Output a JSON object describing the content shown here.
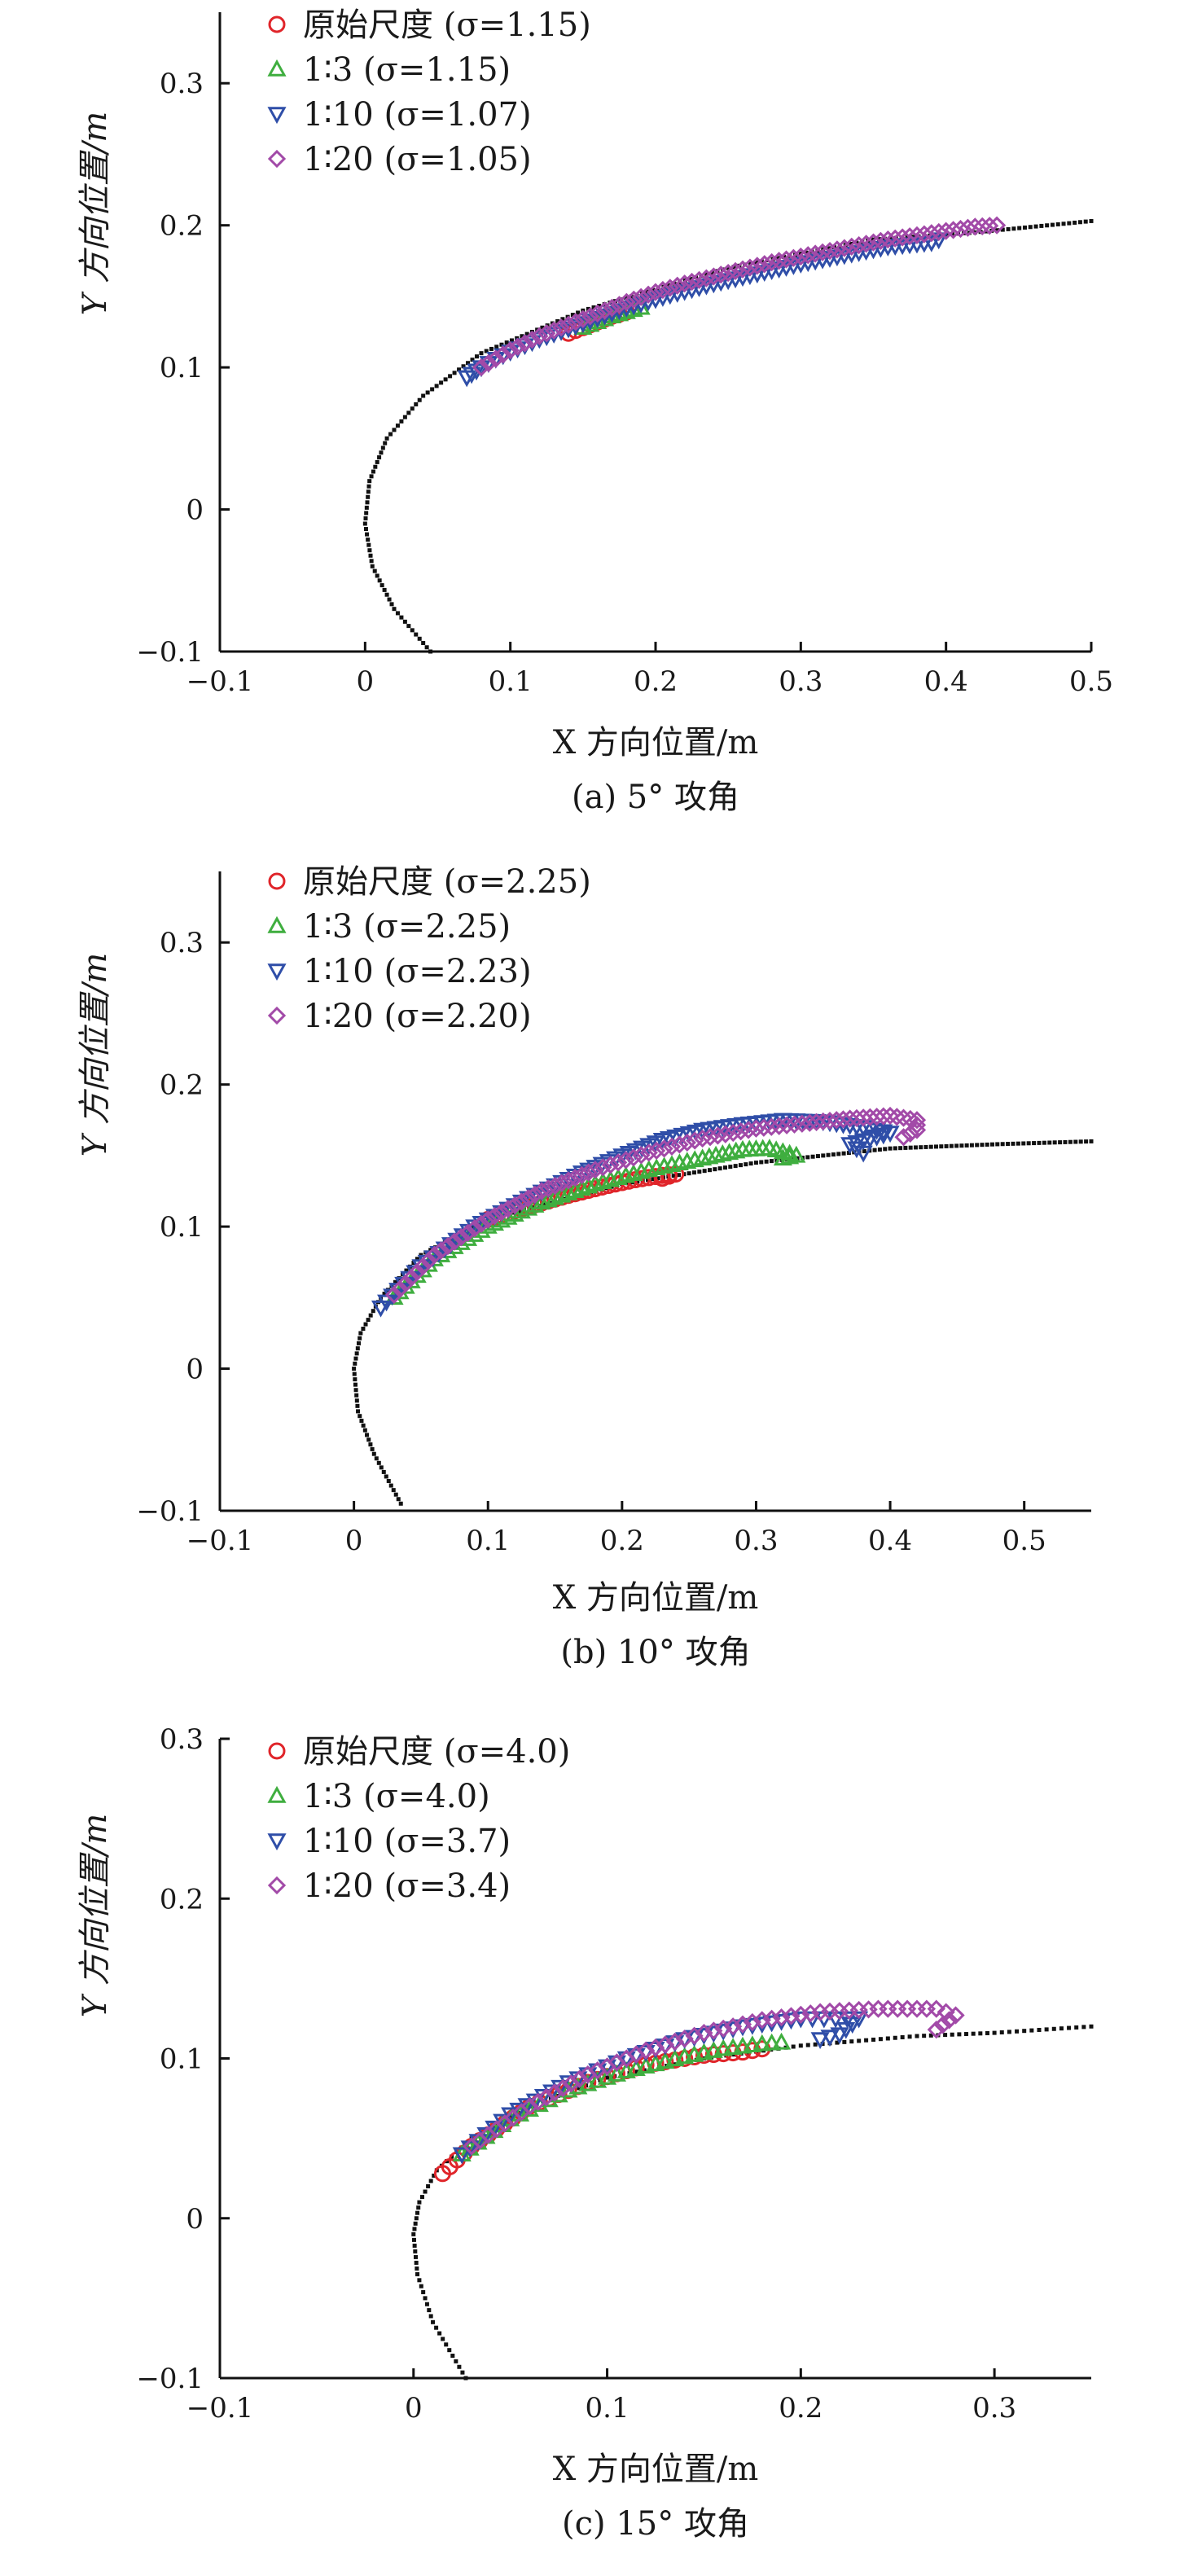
{
  "chart_data": [
    {
      "type": "scatter",
      "caption": "(a) 5° 攻角",
      "xlabel": "X 方向位置/m",
      "ylabel": "Y 方向位置/m",
      "xlim": [
        -0.1,
        0.5
      ],
      "ylim": [
        -0.1,
        0.35
      ],
      "xticks": [
        "−0.1",
        "0",
        "0.1",
        "0.2",
        "0.3",
        "0.4",
        "0.5"
      ],
      "yticks": [
        "−0.1",
        "0",
        "0.1",
        "0.2",
        "0.3"
      ],
      "xtick_values": [
        -0.1,
        0,
        0.1,
        0.2,
        0.3,
        0.4,
        0.5
      ],
      "ytick_values": [
        -0.1,
        0,
        0.1,
        0.2,
        0.3
      ],
      "legend_position": "top-left",
      "reference_curve": {
        "style": "dotted",
        "color": "#111111",
        "points": [
          [
            0.045,
            -0.1
          ],
          [
            0.02,
            -0.07
          ],
          [
            0.005,
            -0.04
          ],
          [
            0.0,
            -0.01
          ],
          [
            0.003,
            0.02
          ],
          [
            0.015,
            0.05
          ],
          [
            0.04,
            0.08
          ],
          [
            0.08,
            0.11
          ],
          [
            0.15,
            0.14
          ],
          [
            0.25,
            0.17
          ],
          [
            0.35,
            0.19
          ],
          [
            0.42,
            0.195
          ],
          [
            0.5,
            0.203
          ]
        ]
      },
      "series": [
        {
          "name": "原始尺度 (σ=1.15)",
          "marker": "circle",
          "color": "#e0252a",
          "points": [
            [
              0.14,
              0.124
            ],
            [
              0.15,
              0.128
            ],
            [
              0.16,
              0.132
            ],
            [
              0.17,
              0.136
            ],
            [
              0.18,
              0.139
            ]
          ]
        },
        {
          "name": "1∶3 (σ=1.15)",
          "marker": "triangle-up",
          "color": "#3fae3f",
          "points": [
            [
              0.15,
              0.128
            ],
            [
              0.16,
              0.132
            ],
            [
              0.17,
              0.136
            ],
            [
              0.18,
              0.139
            ],
            [
              0.19,
              0.142
            ]
          ]
        },
        {
          "name": "1∶10 (σ=1.07)",
          "marker": "triangle-down",
          "color": "#2f4ea8",
          "points": [
            [
              0.07,
              0.093
            ],
            [
              0.08,
              0.1
            ],
            [
              0.09,
              0.106
            ],
            [
              0.1,
              0.111
            ],
            [
              0.12,
              0.12
            ],
            [
              0.15,
              0.131
            ],
            [
              0.18,
              0.142
            ],
            [
              0.21,
              0.151
            ],
            [
              0.24,
              0.159
            ],
            [
              0.27,
              0.166
            ],
            [
              0.3,
              0.173
            ],
            [
              0.33,
              0.179
            ],
            [
              0.36,
              0.185
            ],
            [
              0.39,
              0.188
            ],
            [
              0.395,
              0.19
            ]
          ]
        },
        {
          "name": "1∶20 (σ=1.05)",
          "marker": "diamond",
          "color": "#a24aa8",
          "points": [
            [
              0.08,
              0.1
            ],
            [
              0.1,
              0.112
            ],
            [
              0.12,
              0.122
            ],
            [
              0.14,
              0.13
            ],
            [
              0.16,
              0.138
            ],
            [
              0.18,
              0.146
            ],
            [
              0.2,
              0.153
            ],
            [
              0.22,
              0.159
            ],
            [
              0.24,
              0.164
            ],
            [
              0.26,
              0.169
            ],
            [
              0.28,
              0.174
            ],
            [
              0.3,
              0.178
            ],
            [
              0.32,
              0.182
            ],
            [
              0.34,
              0.186
            ],
            [
              0.36,
              0.19
            ],
            [
              0.38,
              0.193
            ],
            [
              0.4,
              0.196
            ],
            [
              0.42,
              0.199
            ],
            [
              0.435,
              0.2
            ]
          ]
        }
      ]
    },
    {
      "type": "scatter",
      "caption": "(b) 10° 攻角",
      "xlabel": "X 方向位置/m",
      "ylabel": "Y 方向位置/m",
      "xlim": [
        -0.1,
        0.55
      ],
      "ylim": [
        -0.1,
        0.35
      ],
      "xticks": [
        "−0.1",
        "0",
        "0.1",
        "0.2",
        "0.3",
        "0.4",
        "0.5"
      ],
      "yticks": [
        "−0.1",
        "0",
        "0.1",
        "0.2",
        "0.3"
      ],
      "xtick_values": [
        -0.1,
        0,
        0.1,
        0.2,
        0.3,
        0.4,
        0.5
      ],
      "ytick_values": [
        -0.1,
        0,
        0.1,
        0.2,
        0.3
      ],
      "legend_position": "top-left",
      "reference_curve": {
        "style": "dotted",
        "color": "#111111",
        "points": [
          [
            0.035,
            -0.095
          ],
          [
            0.015,
            -0.06
          ],
          [
            0.003,
            -0.03
          ],
          [
            0.0,
            0.0
          ],
          [
            0.005,
            0.025
          ],
          [
            0.02,
            0.05
          ],
          [
            0.05,
            0.08
          ],
          [
            0.1,
            0.105
          ],
          [
            0.2,
            0.13
          ],
          [
            0.3,
            0.145
          ],
          [
            0.4,
            0.155
          ],
          [
            0.48,
            0.158
          ],
          [
            0.55,
            0.16
          ]
        ]
      },
      "series": [
        {
          "name": "原始尺度 (σ=2.25)",
          "marker": "circle",
          "color": "#e0252a",
          "points": [
            [
              0.1,
              0.105
            ],
            [
              0.13,
              0.114
            ],
            [
              0.16,
              0.122
            ],
            [
              0.19,
              0.129
            ],
            [
              0.21,
              0.133
            ],
            [
              0.23,
              0.136
            ],
            [
              0.24,
              0.137
            ],
            [
              0.23,
              0.134
            ]
          ]
        },
        {
          "name": "1∶3 (σ=2.25)",
          "marker": "triangle-up",
          "color": "#3fae3f",
          "points": [
            [
              0.03,
              0.05
            ],
            [
              0.06,
              0.077
            ],
            [
              0.1,
              0.1
            ],
            [
              0.14,
              0.117
            ],
            [
              0.18,
              0.13
            ],
            [
              0.22,
              0.14
            ],
            [
              0.26,
              0.148
            ],
            [
              0.29,
              0.154
            ],
            [
              0.31,
              0.155
            ],
            [
              0.33,
              0.15
            ],
            [
              0.32,
              0.148
            ]
          ]
        },
        {
          "name": "1∶10 (σ=2.23)",
          "marker": "triangle-down",
          "color": "#2f4ea8",
          "points": [
            [
              0.02,
              0.043
            ],
            [
              0.05,
              0.072
            ],
            [
              0.09,
              0.1
            ],
            [
              0.13,
              0.12
            ],
            [
              0.17,
              0.138
            ],
            [
              0.2,
              0.15
            ],
            [
              0.23,
              0.161
            ],
            [
              0.26,
              0.168
            ],
            [
              0.29,
              0.172
            ],
            [
              0.32,
              0.175
            ],
            [
              0.35,
              0.174
            ],
            [
              0.38,
              0.17
            ],
            [
              0.4,
              0.166
            ],
            [
              0.37,
              0.158
            ],
            [
              0.38,
              0.152
            ]
          ]
        },
        {
          "name": "1∶20 (σ=2.20)",
          "marker": "diamond",
          "color": "#a24aa8",
          "points": [
            [
              0.03,
              0.052
            ],
            [
              0.06,
              0.08
            ],
            [
              0.1,
              0.105
            ],
            [
              0.14,
              0.125
            ],
            [
              0.18,
              0.14
            ],
            [
              0.22,
              0.152
            ],
            [
              0.26,
              0.162
            ],
            [
              0.3,
              0.169
            ],
            [
              0.34,
              0.173
            ],
            [
              0.37,
              0.176
            ],
            [
              0.4,
              0.178
            ],
            [
              0.42,
              0.175
            ],
            [
              0.42,
              0.168
            ],
            [
              0.41,
              0.163
            ]
          ]
        }
      ]
    },
    {
      "type": "scatter",
      "caption": "(c) 15° 攻角",
      "xlabel": "X 方向位置/m",
      "ylabel": "Y 方向位置/m",
      "xlim": [
        -0.1,
        0.35
      ],
      "ylim": [
        -0.1,
        0.3
      ],
      "xticks": [
        "−0.1",
        "0",
        "0.1",
        "0.2",
        "0.3"
      ],
      "yticks": [
        "−0.1",
        "0",
        "0.1",
        "0.2",
        "0.3"
      ],
      "xtick_values": [
        -0.1,
        0,
        0.1,
        0.2,
        0.3
      ],
      "ytick_values": [
        -0.1,
        0,
        0.1,
        0.2,
        0.3
      ],
      "legend_position": "top-left",
      "reference_curve": {
        "style": "dotted",
        "color": "#111111",
        "points": [
          [
            0.027,
            -0.1
          ],
          [
            0.01,
            -0.065
          ],
          [
            0.002,
            -0.035
          ],
          [
            0.0,
            -0.01
          ],
          [
            0.003,
            0.01
          ],
          [
            0.012,
            0.03
          ],
          [
            0.03,
            0.05
          ],
          [
            0.06,
            0.07
          ],
          [
            0.1,
            0.088
          ],
          [
            0.15,
            0.1
          ],
          [
            0.2,
            0.108
          ],
          [
            0.26,
            0.114
          ],
          [
            0.3,
            0.116
          ],
          [
            0.35,
            0.12
          ]
        ]
      },
      "series": [
        {
          "name": "原始尺度 (σ=4.0)",
          "marker": "circle",
          "color": "#e0252a",
          "points": [
            [
              0.015,
              0.028
            ],
            [
              0.03,
              0.045
            ],
            [
              0.06,
              0.07
            ],
            [
              0.09,
              0.085
            ],
            [
              0.12,
              0.096
            ],
            [
              0.15,
              0.102
            ],
            [
              0.17,
              0.104
            ],
            [
              0.18,
              0.106
            ]
          ]
        },
        {
          "name": "1∶3 (σ=4.0)",
          "marker": "triangle-up",
          "color": "#3fae3f",
          "points": [
            [
              0.025,
              0.04
            ],
            [
              0.05,
              0.062
            ],
            [
              0.08,
              0.08
            ],
            [
              0.11,
              0.092
            ],
            [
              0.14,
              0.101
            ],
            [
              0.16,
              0.106
            ],
            [
              0.18,
              0.109
            ],
            [
              0.19,
              0.11
            ]
          ]
        },
        {
          "name": "1∶10 (σ=3.7)",
          "marker": "triangle-down",
          "color": "#2f4ea8",
          "points": [
            [
              0.025,
              0.04
            ],
            [
              0.05,
              0.065
            ],
            [
              0.08,
              0.085
            ],
            [
              0.11,
              0.1
            ],
            [
              0.14,
              0.112
            ],
            [
              0.17,
              0.12
            ],
            [
              0.2,
              0.125
            ],
            [
              0.23,
              0.125
            ],
            [
              0.22,
              0.115
            ],
            [
              0.21,
              0.112
            ]
          ]
        },
        {
          "name": "1∶20 (σ=3.4)",
          "marker": "diamond",
          "color": "#a24aa8",
          "points": [
            [
              0.03,
              0.045
            ],
            [
              0.06,
              0.07
            ],
            [
              0.09,
              0.09
            ],
            [
              0.12,
              0.105
            ],
            [
              0.15,
              0.116
            ],
            [
              0.18,
              0.124
            ],
            [
              0.21,
              0.129
            ],
            [
              0.24,
              0.131
            ],
            [
              0.27,
              0.131
            ],
            [
              0.28,
              0.127
            ],
            [
              0.27,
              0.118
            ]
          ]
        }
      ]
    }
  ]
}
